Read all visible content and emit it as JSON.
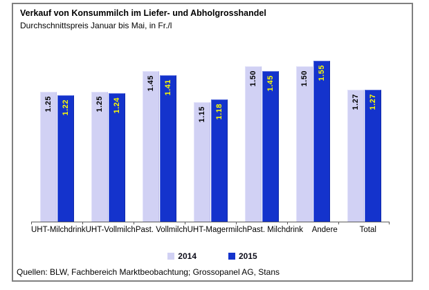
{
  "header": {
    "title": "Verkauf von Konsummilch im Liefer- und Abholgrosshandel",
    "subtitle": "Durchschnittspreis Januar bis Mai, in Fr./l"
  },
  "footer": {
    "source": "Quellen: BLW, Fachbereich Marktbeobachtung; Grossopanel AG, Stans"
  },
  "colors": {
    "series_2014": "#d1d1f4",
    "series_2015": "#1433cc",
    "label_on_2014": "#000000",
    "label_on_2015": "#ffff00",
    "frame_border": "#7f7f7f",
    "axis": "#595959"
  },
  "chart_data": {
    "type": "bar",
    "title": "Verkauf von Konsummilch im Liefer- und Abholgrosshandel",
    "subtitle": "Durchschnittspreis Januar bis Mai, in Fr./l",
    "categories": [
      "UHT-Milchdrink",
      "UHT-Vollmilch",
      "Past. Vollmilch",
      "UHT-Magermilch",
      "Past. Milchdrink",
      "Andere",
      "Total"
    ],
    "series": [
      {
        "name": "2014",
        "color": "#d1d1f4",
        "values": [
          1.25,
          1.25,
          1.45,
          1.15,
          1.5,
          1.5,
          1.27
        ]
      },
      {
        "name": "2015",
        "color": "#1433cc",
        "values": [
          1.22,
          1.24,
          1.41,
          1.18,
          1.45,
          1.55,
          1.27
        ]
      }
    ],
    "ylabel": "Fr./l",
    "ylim": [
      0,
      1.75
    ],
    "grid": false,
    "legend_position": "bottom",
    "value_labels": "rotated-90-inside-top",
    "value_label_decimals": 2
  }
}
